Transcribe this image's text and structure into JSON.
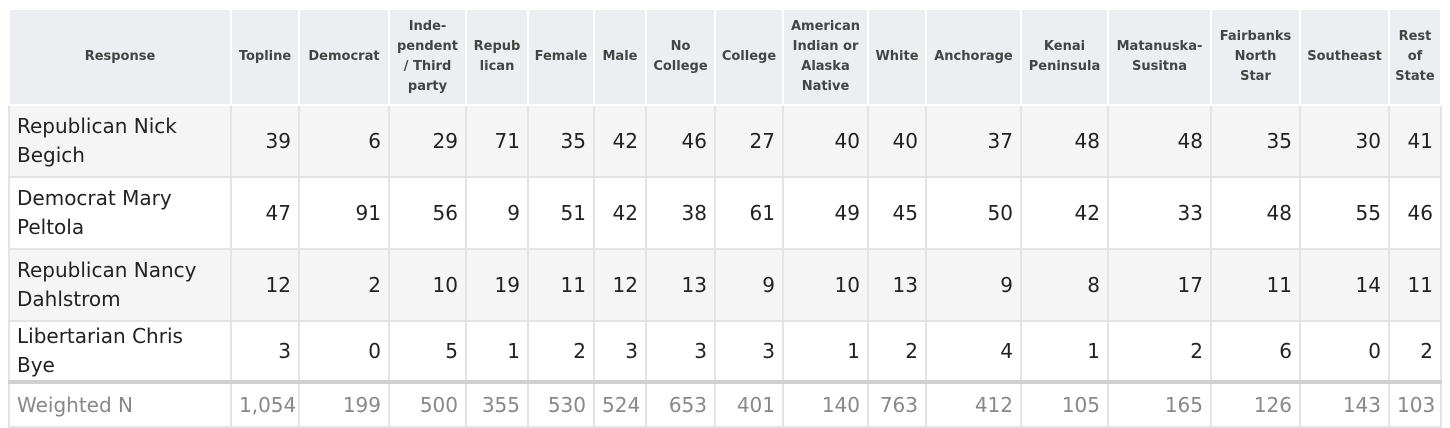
{
  "table": {
    "columns": [
      "Response",
      "Topline",
      "Democrat",
      "Inde-\npendent\n/ Third\nparty",
      "Repub\nlican",
      "Female",
      "Male",
      "No\nCollege",
      "College",
      "American\nIndian or\nAlaska\nNative",
      "White",
      "Anchorage",
      "Kenai\nPeninsula",
      "Matanuska-\nSusitna",
      "Fairbanks\nNorth\nStar",
      "Southeast",
      "Rest\nof\nState"
    ],
    "rows": [
      [
        "Republican Nick Begich",
        39,
        6,
        29,
        71,
        35,
        42,
        46,
        27,
        40,
        40,
        37,
        48,
        48,
        35,
        30,
        41
      ],
      [
        "Democrat Mary Peltola",
        47,
        91,
        56,
        9,
        51,
        42,
        38,
        61,
        49,
        45,
        50,
        42,
        33,
        48,
        55,
        46
      ],
      [
        "Republican Nancy Dahlstrom",
        12,
        2,
        10,
        19,
        11,
        12,
        13,
        9,
        10,
        13,
        9,
        8,
        17,
        11,
        14,
        11
      ],
      [
        "Libertarian Chris Bye",
        3,
        0,
        5,
        1,
        2,
        3,
        3,
        3,
        1,
        2,
        4,
        1,
        2,
        6,
        0,
        2
      ]
    ],
    "footer": [
      "Weighted N",
      "1,054",
      199,
      500,
      355,
      530,
      524,
      653,
      401,
      140,
      763,
      412,
      105,
      165,
      126,
      143,
      103
    ]
  }
}
